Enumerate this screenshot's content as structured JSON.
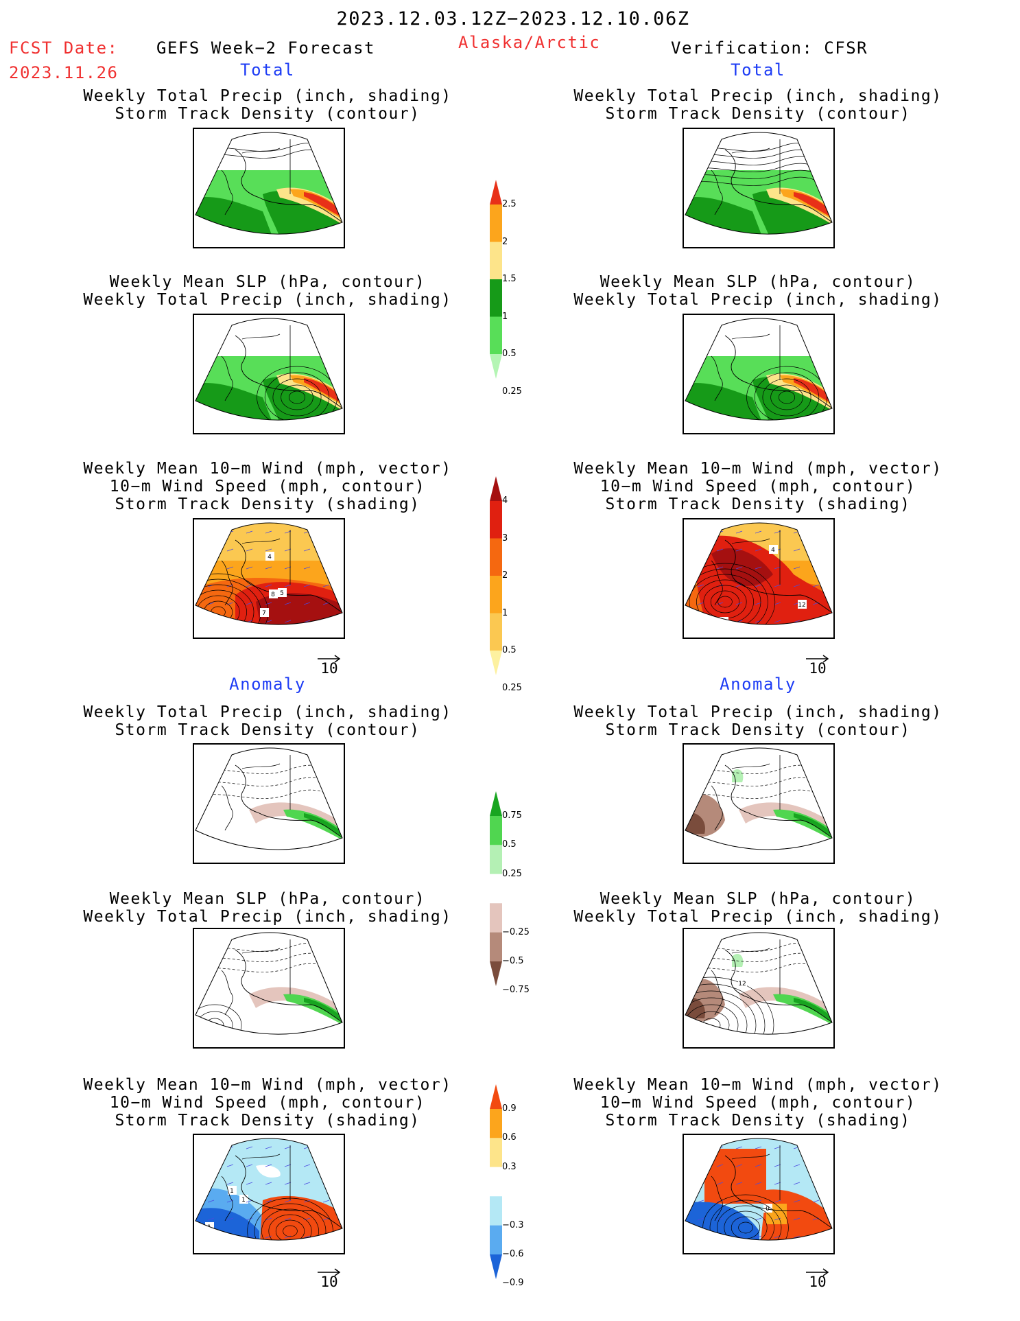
{
  "header": {
    "date_range": "2023.12.03.12Z−2023.12.10.06Z",
    "fcst_label": "FCST Date:",
    "fcst_date": "2023.11.26",
    "product": "GEFS Week−2 Forecast",
    "region": "Alaska/Arctic",
    "verification": "Verification: CFSR"
  },
  "sections": {
    "total_left": "Total",
    "total_right": "Total",
    "anomaly_left": "Anomaly",
    "anomaly_right": "Anomaly"
  },
  "titles": {
    "precip_track": [
      "Weekly Total Precip (inch, shading)",
      "Storm Track Density (contour)"
    ],
    "slp_precip": [
      "Weekly Mean SLP (hPa, contour)",
      "Weekly Total Precip (inch, shading)"
    ],
    "wind_track": [
      "Weekly Mean 10−m Wind (mph, vector)",
      "10−m Wind Speed (mph, contour)",
      "Storm Track Density (shading)"
    ]
  },
  "vector_reference": "10",
  "colorbars": {
    "precip_total": {
      "labels": [
        "2.5",
        "2",
        "1.5",
        "1",
        "0.5",
        "0.25"
      ],
      "colors": [
        "#e83018",
        "#fca51c",
        "#fde48a",
        "#169a18",
        "#58de58",
        "#b4f5b4"
      ]
    },
    "track_total": {
      "labels": [
        "4",
        "3",
        "2",
        "1",
        "0.5",
        "0.25"
      ],
      "colors": [
        "#a51010",
        "#e02010",
        "#f56810",
        "#fca51c",
        "#fbc851",
        "#fdf1a0"
      ]
    },
    "precip_anom": {
      "labels": [
        "0.75",
        "0.5",
        "0.25",
        "−0.25",
        "−0.5",
        "−0.75"
      ],
      "colors": [
        "#18a520",
        "#50d650",
        "#b4f0b4",
        "#ffffff",
        "#e4c5bd",
        "#b58a7a",
        "#7a4c3c"
      ]
    },
    "track_anom": {
      "labels": [
        "0.9",
        "0.6",
        "0.3",
        "−0.3",
        "−0.6",
        "−0.9"
      ],
      "colors": [
        "#f24a10",
        "#fca51c",
        "#fde48a",
        "#ffffff",
        "#b4e8f5",
        "#5aabf0",
        "#1c64d8"
      ]
    }
  },
  "panel_labels": {
    "wind_total_left": [
      "8",
      "5",
      "7",
      "4"
    ],
    "wind_total_right": [
      "12",
      "16",
      "4"
    ],
    "wind_anom_left": [
      "1",
      "1",
      "1"
    ],
    "wind_anom_right": [
      "0"
    ],
    "slp_anom_right": [
      "12"
    ]
  }
}
